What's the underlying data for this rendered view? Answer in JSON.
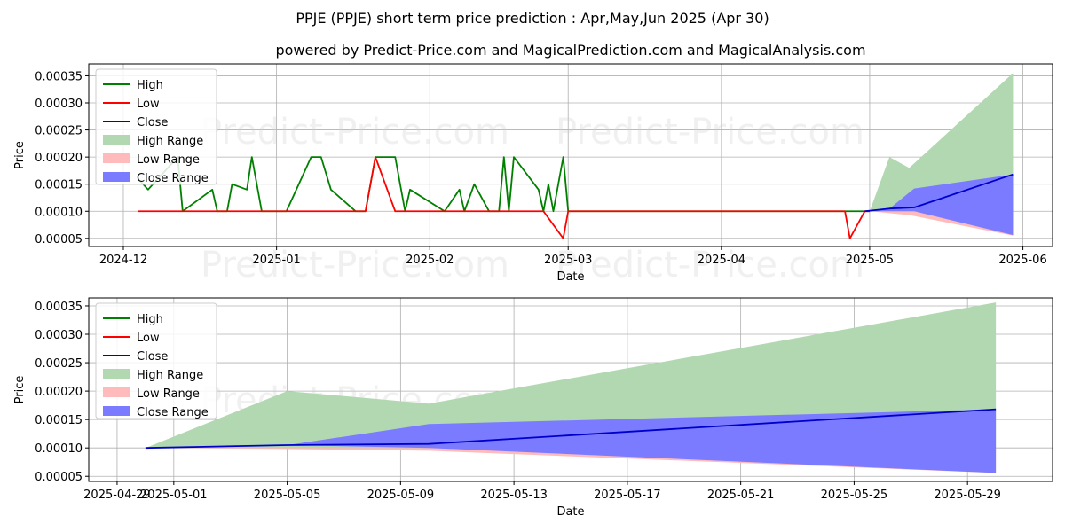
{
  "title": "PPJE (PPJE) short term price prediction : Apr,May,Jun 2025 (Apr 30)",
  "subtitle": "powered by Predict-Price.com and MagicalPrediction.com and MagicalAnalysis.com",
  "watermark": "Predict-Price.com",
  "colors": {
    "high": "#008000",
    "low": "#ff0000",
    "close": "#0000cc",
    "high_range": "#b2d8b2",
    "low_range": "#ffbbbb",
    "close_range": "#7b7bff",
    "grid": "#b0b0b0"
  },
  "chart_data": [
    {
      "type": "line",
      "xlabel": "Date",
      "ylabel": "Price",
      "xlim": [
        "2024-11-24",
        "2025-06-07"
      ],
      "ylim": [
        3.5e-05,
        0.000372
      ],
      "x_ticks": [
        "2024-12",
        "2025-01",
        "2025-02",
        "2025-03",
        "2025-04",
        "2025-05",
        "2025-06"
      ],
      "x_tick_dates": [
        "2024-12-01",
        "2025-01-01",
        "2025-02-01",
        "2025-03-01",
        "2025-04-01",
        "2025-05-01",
        "2025-06-01"
      ],
      "y_ticks": [
        "0.00005",
        "0.00010",
        "0.00015",
        "0.00020",
        "0.00025",
        "0.00030",
        "0.00035"
      ],
      "y_tick_values": [
        5e-05,
        0.0001,
        0.00015,
        0.0002,
        0.00025,
        0.0003,
        0.00035
      ],
      "grid": true,
      "legend": [
        "High",
        "Low",
        "Close",
        "High Range",
        "Low Range",
        "Close Range"
      ],
      "legend_position": "top-left",
      "series": [
        {
          "name": "High",
          "points": [
            [
              "2024-12-04",
              0.00016
            ],
            [
              "2024-12-06",
              0.00014
            ],
            [
              "2024-12-08",
              0.00016
            ],
            [
              "2024-12-10",
              0.00018
            ],
            [
              "2024-12-12",
              0.0002
            ],
            [
              "2024-12-13",
              0.0001
            ],
            [
              "2024-12-19",
              0.00014
            ],
            [
              "2024-12-20",
              0.0001
            ],
            [
              "2024-12-22",
              0.0001
            ],
            [
              "2024-12-23",
              0.00015
            ],
            [
              "2024-12-26",
              0.00014
            ],
            [
              "2024-12-27",
              0.0002
            ],
            [
              "2024-12-29",
              0.0001
            ],
            [
              "2025-01-03",
              0.0001
            ],
            [
              "2025-01-08",
              0.0002
            ],
            [
              "2025-01-10",
              0.0002
            ],
            [
              "2025-01-12",
              0.00014
            ],
            [
              "2025-01-17",
              0.0001
            ],
            [
              "2025-01-19",
              0.0001
            ],
            [
              "2025-01-21",
              0.0002
            ],
            [
              "2025-01-25",
              0.0002
            ],
            [
              "2025-01-27",
              0.0001
            ],
            [
              "2025-01-28",
              0.00014
            ],
            [
              "2025-02-04",
              0.0001
            ],
            [
              "2025-02-04",
              0.0001
            ],
            [
              "2025-02-07",
              0.00014
            ],
            [
              "2025-02-08",
              0.0001
            ],
            [
              "2025-02-10",
              0.00015
            ],
            [
              "2025-02-13",
              0.0001
            ],
            [
              "2025-02-15",
              0.0001
            ],
            [
              "2025-02-16",
              0.0002
            ],
            [
              "2025-02-17",
              0.0001
            ],
            [
              "2025-02-18",
              0.0002
            ],
            [
              "2025-02-23",
              0.00014
            ],
            [
              "2025-02-24",
              0.0001
            ],
            [
              "2025-02-25",
              0.00015
            ],
            [
              "2025-02-26",
              0.0001
            ],
            [
              "2025-02-28",
              0.0002
            ],
            [
              "2025-03-01",
              0.0001
            ],
            [
              "2025-04-28",
              0.0001
            ],
            [
              "2025-05-01",
              0.0001
            ]
          ]
        },
        {
          "name": "Low",
          "points": [
            [
              "2024-12-04",
              0.0001
            ],
            [
              "2025-01-19",
              0.0001
            ],
            [
              "2025-01-21",
              0.0002
            ],
            [
              "2025-01-25",
              0.0001
            ],
            [
              "2025-02-24",
              0.0001
            ],
            [
              "2025-02-28",
              5e-05
            ],
            [
              "2025-03-01",
              0.0001
            ],
            [
              "2025-04-26",
              0.0001
            ],
            [
              "2025-04-27",
              5e-05
            ],
            [
              "2025-04-30",
              0.0001
            ],
            [
              "2025-05-01",
              0.0001
            ]
          ]
        },
        {
          "name": "Close",
          "points": [
            [
              "2025-04-30",
              0.0001
            ],
            [
              "2025-05-05",
              0.000105
            ],
            [
              "2025-05-10",
              0.000107
            ],
            [
              "2025-05-30",
              0.000168
            ]
          ]
        }
      ],
      "ranges": [
        {
          "name": "High Range",
          "upper": [
            [
              "2025-05-01",
              0.0001
            ],
            [
              "2025-05-05",
              0.0002
            ],
            [
              "2025-05-09",
              0.00018
            ],
            [
              "2025-05-30",
              0.000355
            ]
          ],
          "lower": [
            [
              "2025-05-01",
              0.0001
            ],
            [
              "2025-05-30",
              0.0001
            ]
          ]
        },
        {
          "name": "Low Range",
          "upper": [
            [
              "2025-05-01",
              0.0001
            ],
            [
              "2025-05-09",
              0.0001
            ],
            [
              "2025-05-30",
              0.0001
            ]
          ],
          "lower": [
            [
              "2025-05-01",
              0.0001
            ],
            [
              "2025-05-09",
              9.3e-05
            ],
            [
              "2025-05-30",
              5.5e-05
            ]
          ]
        },
        {
          "name": "Close Range",
          "upper": [
            [
              "2025-05-01",
              0.0001
            ],
            [
              "2025-05-05",
              0.000105
            ],
            [
              "2025-05-10",
              0.000142
            ],
            [
              "2025-05-30",
              0.000168
            ]
          ],
          "lower": [
            [
              "2025-05-01",
              0.0001
            ],
            [
              "2025-05-05",
              0.0001
            ],
            [
              "2025-05-10",
              0.0001
            ],
            [
              "2025-05-30",
              5.6e-05
            ]
          ]
        }
      ]
    },
    {
      "type": "line",
      "xlabel": "Date",
      "ylabel": "Price",
      "xlim": [
        "2025-04-28",
        "2025-06-01"
      ],
      "ylim": [
        4.1e-05,
        0.000364
      ],
      "x_ticks": [
        "2025-04-29",
        "2025-05-01",
        "2025-05-05",
        "2025-05-09",
        "2025-05-13",
        "2025-05-17",
        "2025-05-21",
        "2025-05-25",
        "2025-05-29"
      ],
      "x_tick_dates": [
        "2025-04-29",
        "2025-05-01",
        "2025-05-05",
        "2025-05-09",
        "2025-05-13",
        "2025-05-17",
        "2025-05-21",
        "2025-05-25",
        "2025-05-29"
      ],
      "y_ticks": [
        "0.00005",
        "0.00010",
        "0.00015",
        "0.00020",
        "0.00025",
        "0.00030",
        "0.00035"
      ],
      "y_tick_values": [
        5e-05,
        0.0001,
        0.00015,
        0.0002,
        0.00025,
        0.0003,
        0.00035
      ],
      "grid": true,
      "legend": [
        "High",
        "Low",
        "Close",
        "High Range",
        "Low Range",
        "Close Range"
      ],
      "legend_position": "top-left",
      "series": [
        {
          "name": "High",
          "points": [
            [
              "2025-04-30",
              0.0001
            ]
          ]
        },
        {
          "name": "Low",
          "points": [
            [
              "2025-04-30",
              0.0001
            ]
          ]
        },
        {
          "name": "Close",
          "points": [
            [
              "2025-04-30",
              0.0001
            ],
            [
              "2025-05-05",
              0.000105
            ],
            [
              "2025-05-10",
              0.000107
            ],
            [
              "2025-05-30",
              0.000168
            ]
          ]
        }
      ],
      "ranges": [
        {
          "name": "High Range",
          "upper": [
            [
              "2025-04-30",
              0.0001
            ],
            [
              "2025-05-05",
              0.0002
            ],
            [
              "2025-05-10",
              0.000178
            ],
            [
              "2025-05-30",
              0.000356
            ]
          ],
          "lower": [
            [
              "2025-04-30",
              0.0001
            ],
            [
              "2025-05-30",
              0.0001
            ]
          ]
        },
        {
          "name": "Low Range",
          "upper": [
            [
              "2025-04-30",
              0.0001
            ],
            [
              "2025-05-30",
              0.0001
            ]
          ],
          "lower": [
            [
              "2025-04-30",
              0.0001
            ],
            [
              "2025-05-05",
              9.8e-05
            ],
            [
              "2025-05-10",
              9.5e-05
            ],
            [
              "2025-05-30",
              5.6e-05
            ]
          ]
        },
        {
          "name": "Close Range",
          "upper": [
            [
              "2025-04-30",
              0.0001
            ],
            [
              "2025-05-05",
              0.000105
            ],
            [
              "2025-05-10",
              0.000142
            ],
            [
              "2025-05-30",
              0.000168
            ]
          ],
          "lower": [
            [
              "2025-04-30",
              0.0001
            ],
            [
              "2025-05-05",
              0.000105
            ],
            [
              "2025-05-10",
              0.0001
            ],
            [
              "2025-05-30",
              5.6e-05
            ]
          ]
        }
      ]
    }
  ]
}
